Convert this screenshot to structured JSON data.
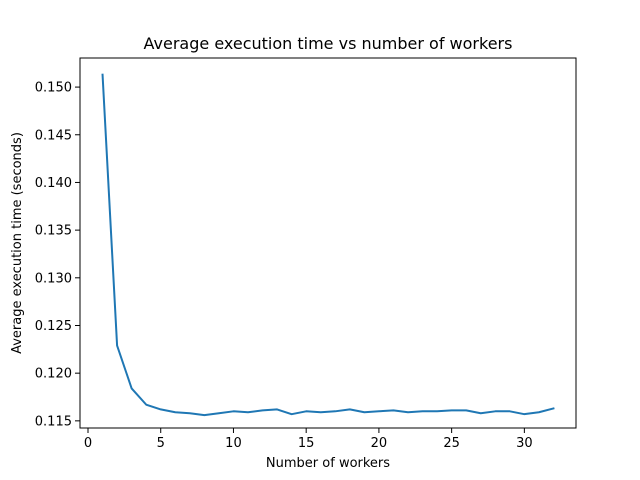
{
  "chart_data": {
    "type": "line",
    "title": "Average execution time vs number of workers",
    "xlabel": "Number of workers",
    "ylabel": "Average execution time (seconds)",
    "xlim": [
      -0.55,
      33.55
    ],
    "ylim": [
      0.11425,
      0.15305
    ],
    "xticks": [
      0,
      5,
      10,
      15,
      20,
      25,
      30
    ],
    "yticks": [
      0.115,
      0.12,
      0.125,
      0.13,
      0.135,
      0.14,
      0.145,
      0.15
    ],
    "ytick_labels": [
      "0.115",
      "0.120",
      "0.125",
      "0.130",
      "0.135",
      "0.140",
      "0.145",
      "0.150"
    ],
    "grid": false,
    "series": [
      {
        "color": "#1f77b4",
        "x": [
          1,
          2,
          3,
          4,
          5,
          6,
          7,
          8,
          9,
          10,
          11,
          12,
          13,
          14,
          15,
          16,
          17,
          18,
          19,
          20,
          21,
          22,
          23,
          24,
          25,
          26,
          27,
          28,
          29,
          30,
          31,
          32
        ],
        "values": [
          0.1513,
          0.1229,
          0.1184,
          0.1167,
          0.1162,
          0.1159,
          0.1158,
          0.1156,
          0.1158,
          0.116,
          0.1159,
          0.1161,
          0.1162,
          0.1157,
          0.116,
          0.1159,
          0.116,
          0.1162,
          0.1159,
          0.116,
          0.1161,
          0.1159,
          0.116,
          0.116,
          0.1161,
          0.1161,
          0.1158,
          0.116,
          0.116,
          0.1157,
          0.1159,
          0.1163
        ]
      }
    ]
  }
}
